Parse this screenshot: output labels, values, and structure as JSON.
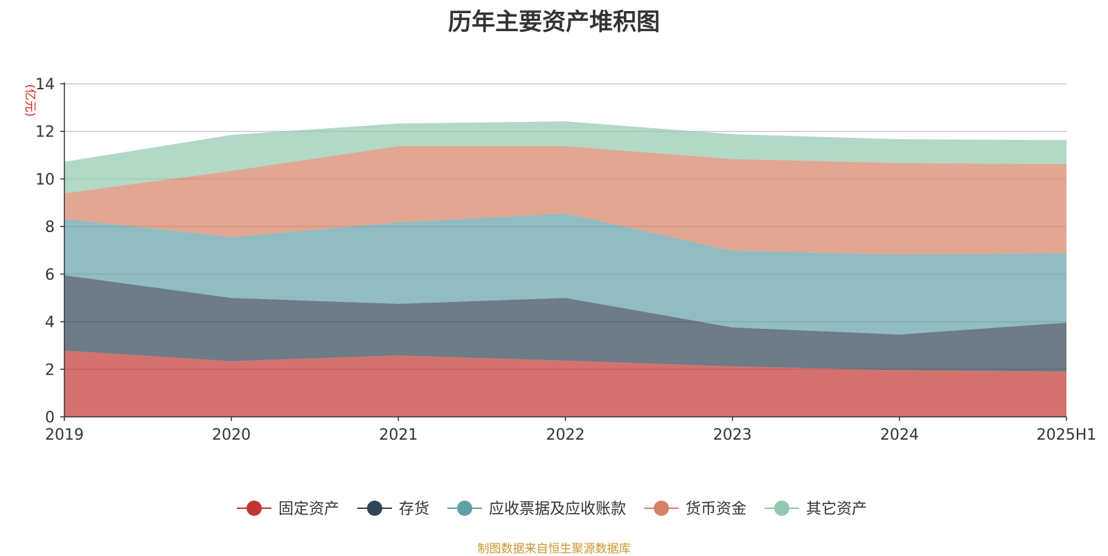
{
  "title": "历年主要资产堆积图",
  "source_note": "制图数据来自恒生聚源数据库",
  "chart_data": {
    "type": "area",
    "stacked": true,
    "title": "历年主要资产堆积图",
    "ylabel": "(亿元)",
    "xlabel": "",
    "categories": [
      "2019",
      "2020",
      "2021",
      "2022",
      "2023",
      "2024",
      "2025H1"
    ],
    "ylim": [
      0,
      14
    ],
    "yticks": [
      0,
      2,
      4,
      6,
      8,
      10,
      12,
      14
    ],
    "grid": true,
    "legend_position": "bottom",
    "series": [
      {
        "name": "固定资产",
        "color": "#c23531",
        "values": [
          2.78,
          2.34,
          2.58,
          2.36,
          2.12,
          1.96,
          1.9
        ]
      },
      {
        "name": "存货",
        "color": "#2f4554",
        "values": [
          3.17,
          2.66,
          2.17,
          2.64,
          1.64,
          1.5,
          2.06
        ]
      },
      {
        "name": "应收票据及应收账款",
        "color": "#61a0a8",
        "values": [
          2.37,
          2.55,
          3.42,
          3.55,
          3.22,
          3.36,
          2.92
        ]
      },
      {
        "name": "货币资金",
        "color": "#d48265",
        "values": [
          1.08,
          2.79,
          3.21,
          2.83,
          3.86,
          3.85,
          3.74
        ]
      },
      {
        "name": "其它资产",
        "color": "#91c7ae",
        "values": [
          1.32,
          1.51,
          0.95,
          1.04,
          1.04,
          1.0,
          1.01
        ]
      }
    ]
  }
}
